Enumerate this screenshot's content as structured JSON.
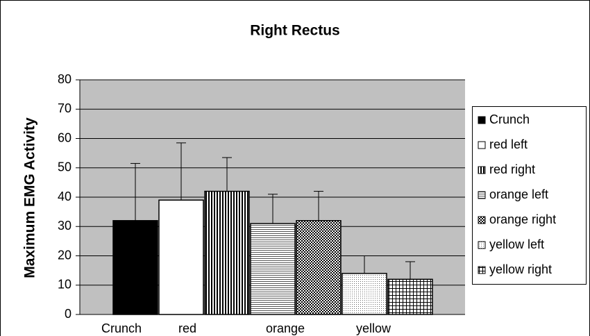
{
  "chart_data": {
    "type": "bar",
    "title": "Right Rectus",
    "y_label": "Maximum EMG Activity",
    "categories": [
      "Crunch",
      "red",
      null,
      "orange",
      null,
      "yellow",
      null
    ],
    "values": [
      32,
      39,
      42,
      31,
      32,
      14,
      12
    ],
    "errors": [
      19.5,
      19.5,
      11.5,
      10,
      10,
      6,
      6
    ],
    "legend": [
      "Crunch",
      "red left",
      "red right",
      "orange left",
      "orange right",
      "yellow left",
      "yellow right"
    ],
    "patterns": [
      "solid",
      "white",
      "vertical",
      "horizontal",
      "checker",
      "dots",
      "grid"
    ],
    "ylim": [
      0,
      80
    ],
    "yticks": [
      0,
      10,
      20,
      30,
      40,
      50,
      60,
      70,
      80
    ],
    "grid": true,
    "legend_position": "right"
  }
}
